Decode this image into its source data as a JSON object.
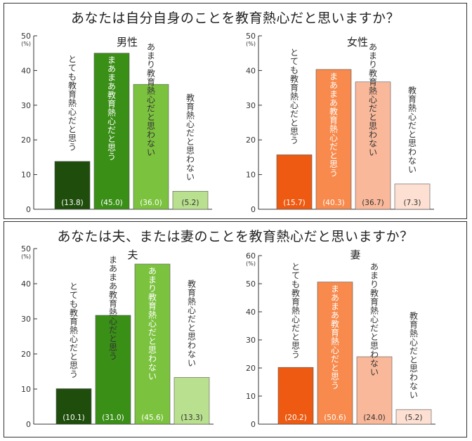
{
  "panels": [
    {
      "title": "あなたは自分自身のことを教育熱心だと思いますか？",
      "charts": [
        {
          "type": "bar",
          "title": "男性",
          "unit": "(%)",
          "ylim": [
            0,
            50
          ],
          "yticks": [
            0,
            10,
            20,
            30,
            40,
            50
          ],
          "categories": [
            "とても教育熱心だと思う",
            "まあまあ教育熱心だと思う",
            "あまり教育熱心だと思わない",
            "教育熱心だと思わない"
          ],
          "values": [
            13.8,
            45.0,
            36.0,
            5.2
          ],
          "value_labels": [
            "(13.8)",
            "(45.0)",
            "(36.0)",
            "(5.2)"
          ],
          "colors": [
            "#1f4d0c",
            "#3a8f17",
            "#7bc23e",
            "#b9e08e"
          ],
          "label_colors": [
            "#ffffff",
            "#ffffff",
            "#ffffff",
            "#333333"
          ]
        },
        {
          "type": "bar",
          "title": "女性",
          "unit": "(%)",
          "ylim": [
            0,
            50
          ],
          "yticks": [
            0,
            10,
            20,
            30,
            40,
            50
          ],
          "categories": [
            "とても教育熱心だと思う",
            "まあまあ教育熱心だと思う",
            "あまり教育熱心だと思わない",
            "教育熱心だと思わない"
          ],
          "values": [
            15.7,
            40.3,
            36.7,
            7.3
          ],
          "value_labels": [
            "(15.7)",
            "(40.3)",
            "(36.7)",
            "(7.3)"
          ],
          "colors": [
            "#ee5a12",
            "#f78a4c",
            "#f9b89a",
            "#fde0d2"
          ],
          "label_colors": [
            "#ffffff",
            "#ffffff",
            "#333333",
            "#333333"
          ]
        }
      ]
    },
    {
      "title": "あなたは夫、または妻のことを教育熱心だと思いますか？",
      "charts": [
        {
          "type": "bar",
          "title": "夫",
          "unit": "(%)",
          "ylim": [
            0,
            50
          ],
          "yticks": [
            0,
            10,
            20,
            30,
            40,
            50
          ],
          "categories": [
            "とても教育熱心だと思う",
            "まあまあ教育熱心だと思う",
            "あまり教育熱心だと思わない",
            "教育熱心だと思わない"
          ],
          "values": [
            10.1,
            31.0,
            45.6,
            13.3
          ],
          "value_labels": [
            "(10.1)",
            "(31.0)",
            "(45.6)",
            "(13.3)"
          ],
          "colors": [
            "#1f4d0c",
            "#3a8f17",
            "#7bc23e",
            "#b9e08e"
          ],
          "label_colors": [
            "#ffffff",
            "#ffffff",
            "#ffffff",
            "#333333"
          ]
        },
        {
          "type": "bar",
          "title": "妻",
          "unit": "(%)",
          "ylim": [
            0,
            60
          ],
          "yticks": [
            0,
            10,
            20,
            30,
            40,
            50,
            60
          ],
          "categories": [
            "とても教育熱心だと思う",
            "まあまあ教育熱心だと思う",
            "あまり教育熱心だと思わない",
            "教育熱心だと思わない"
          ],
          "values": [
            20.2,
            50.6,
            24.0,
            5.2
          ],
          "value_labels": [
            "(20.2)",
            "(50.6)",
            "(24.0)",
            "(5.2)"
          ],
          "colors": [
            "#ee5a12",
            "#f78a4c",
            "#f9b89a",
            "#fde0d2"
          ],
          "label_colors": [
            "#ffffff",
            "#ffffff",
            "#333333",
            "#333333"
          ]
        }
      ]
    }
  ]
}
